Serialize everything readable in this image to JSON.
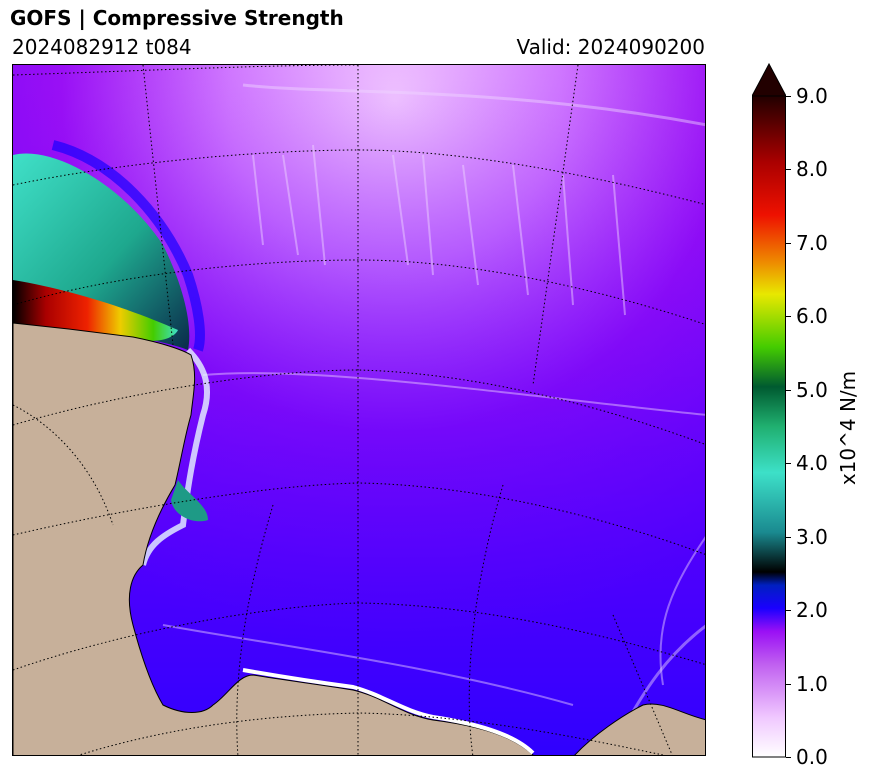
{
  "header": {
    "title": "GOFS  |  Compressive Strength",
    "run": "2024082912 t084",
    "valid": "Valid: 2024090200"
  },
  "colorbar": {
    "unit_label": "x10^4 N/m",
    "min": 0.0,
    "max": 9.0,
    "extend": "max",
    "ticks": [
      "0.0",
      "1.0",
      "2.0",
      "3.0",
      "4.0",
      "5.0",
      "6.0",
      "7.0",
      "8.0",
      "9.0"
    ],
    "colors": {
      "low": "#ffffff",
      "mid_low": "#b84cf0",
      "two": "#1a00ff",
      "teal": "#3de0c8",
      "green": "#44cc00",
      "yellow": "#e8e800",
      "red": "#ee1100",
      "max": "#220000"
    }
  },
  "map": {
    "land_color": "#c7b09a",
    "background_field_color": "#a020f0",
    "grid": "dotted"
  }
}
